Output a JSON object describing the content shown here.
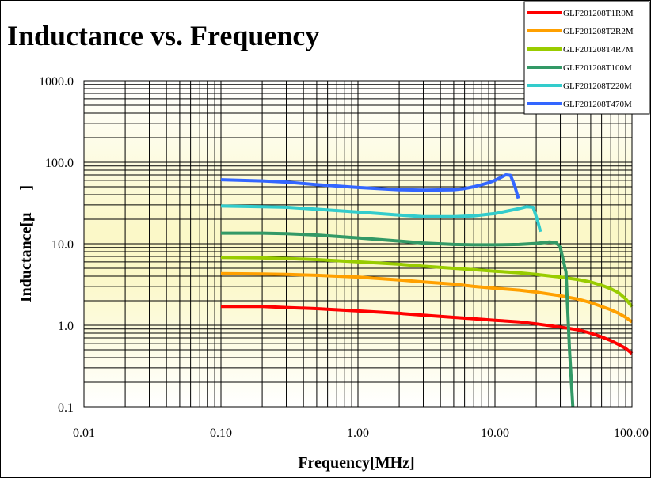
{
  "chart_data": {
    "type": "line",
    "title": "Inductance vs. Frequency",
    "xlabel": "Frequency[MHz]",
    "ylabel": "Inductance[μ",
    "ylabel_suffix": "]",
    "x_scale": "log",
    "y_scale": "log",
    "xlim": [
      0.01,
      100
    ],
    "ylim": [
      0.1,
      1000
    ],
    "x_ticks": [
      "0.01",
      "0.10",
      "1.00",
      "10.00",
      "100.00"
    ],
    "y_ticks": [
      "0.1",
      "1.0",
      "10.0",
      "100.0",
      "1000.0"
    ],
    "grid": true,
    "legend_position": "top-right",
    "series": [
      {
        "name": "GLF201208T1R0M",
        "color": "#ff0000",
        "x": [
          0.1,
          0.2,
          0.3,
          0.5,
          1,
          2,
          3,
          5,
          7,
          10,
          15,
          20,
          30,
          40,
          50,
          60,
          70,
          80,
          90,
          100
        ],
        "y": [
          1.7,
          1.7,
          1.65,
          1.6,
          1.5,
          1.4,
          1.33,
          1.25,
          1.2,
          1.15,
          1.1,
          1.04,
          0.95,
          0.88,
          0.8,
          0.72,
          0.65,
          0.58,
          0.52,
          0.45
        ]
      },
      {
        "name": "GLF201208T2R2M",
        "color": "#ffa000",
        "x": [
          0.1,
          0.2,
          0.3,
          0.5,
          1,
          2,
          3,
          5,
          7,
          10,
          15,
          20,
          30,
          40,
          50,
          60,
          70,
          80,
          90,
          100
        ],
        "y": [
          4.3,
          4.25,
          4.2,
          4.1,
          3.9,
          3.6,
          3.4,
          3.2,
          3.0,
          2.85,
          2.7,
          2.55,
          2.3,
          2.1,
          1.9,
          1.7,
          1.55,
          1.4,
          1.25,
          1.1
        ]
      },
      {
        "name": "GLF201208T4R7M",
        "color": "#99cc00",
        "x": [
          0.1,
          0.2,
          0.3,
          0.5,
          1,
          2,
          3,
          5,
          7,
          10,
          15,
          20,
          30,
          40,
          50,
          60,
          70,
          80,
          90,
          100
        ],
        "y": [
          6.8,
          6.7,
          6.6,
          6.4,
          6.0,
          5.6,
          5.3,
          5.0,
          4.8,
          4.6,
          4.4,
          4.2,
          3.9,
          3.65,
          3.4,
          3.1,
          2.8,
          2.5,
          2.1,
          1.7
        ]
      },
      {
        "name": "GLF201208T100M",
        "color": "#339966",
        "x": [
          0.1,
          0.2,
          0.3,
          0.5,
          1,
          2,
          3,
          5,
          7,
          10,
          15,
          20,
          25,
          28,
          30,
          33,
          35,
          37
        ],
        "y": [
          13.5,
          13.5,
          13.3,
          12.8,
          11.8,
          10.8,
          10.2,
          9.8,
          9.7,
          9.7,
          9.8,
          10.1,
          10.5,
          10.3,
          9.0,
          4.5,
          0.5,
          0.1
        ]
      },
      {
        "name": "GLF201208T220M",
        "color": "#33cccc",
        "x": [
          0.1,
          0.2,
          0.3,
          0.5,
          1,
          2,
          3,
          5,
          7,
          10,
          12,
          15,
          17,
          19,
          20.5,
          21.5
        ],
        "y": [
          29,
          28.5,
          28,
          26.5,
          24.5,
          22.5,
          21.5,
          21.5,
          22,
          23.5,
          25,
          27,
          28.5,
          28,
          19,
          14
        ]
      },
      {
        "name": "GLF201208T470M",
        "color": "#3366ff",
        "x": [
          0.1,
          0.2,
          0.3,
          0.5,
          1,
          2,
          3,
          5,
          6,
          7,
          8,
          9,
          10,
          11,
          12,
          13,
          14,
          14.8
        ],
        "y": [
          61,
          59,
          57,
          53,
          49,
          46,
          45.5,
          46,
          47.5,
          50,
          53,
          56,
          60,
          65,
          70,
          69,
          50,
          36
        ]
      }
    ]
  }
}
